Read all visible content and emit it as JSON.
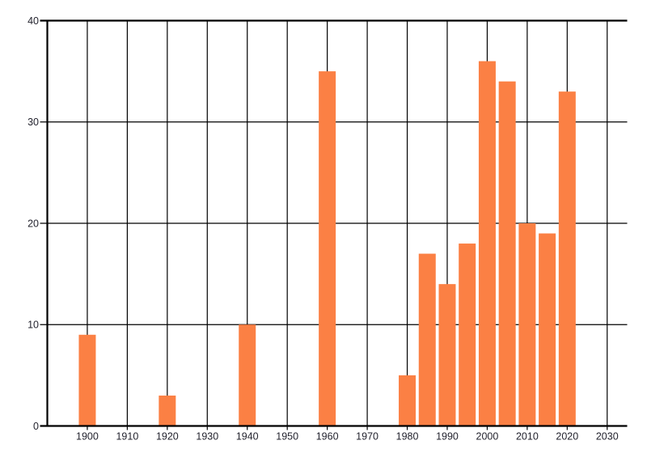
{
  "chart_data": {
    "type": "bar",
    "title": "",
    "xlabel": "",
    "ylabel": "",
    "categories": [
      1900,
      1920,
      1940,
      1960,
      1980,
      1985,
      1990,
      1995,
      2000,
      2005,
      2010,
      2015,
      2020
    ],
    "values": [
      9,
      3,
      10,
      35,
      5,
      17,
      14,
      18,
      36,
      34,
      20,
      19,
      33
    ],
    "x_tick_labels": [
      "1900",
      "1910",
      "1920",
      "1930",
      "1940",
      "1950",
      "1960",
      "1970",
      "1980",
      "1990",
      "2000",
      "2010",
      "2020",
      "2030"
    ],
    "y_tick_labels": [
      "0",
      "10",
      "20",
      "30",
      "40"
    ],
    "xlim": [
      1890,
      2035
    ],
    "ylim": [
      0,
      40
    ],
    "grid": true,
    "legend": false,
    "background": "#ffffff",
    "bar_color": "#fb8044",
    "grid_color": "#000000",
    "axis_color": "#000000",
    "tick_label_color": "#23232e"
  }
}
